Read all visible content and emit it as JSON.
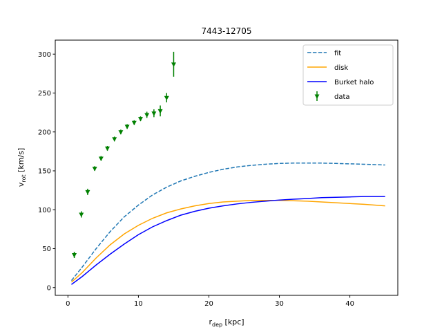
{
  "chart_data": {
    "type": "line",
    "title": "7443-12705",
    "xlabel_main": "r",
    "xlabel_sub": "dep",
    "xlabel_unit": " [kpc]",
    "ylabel_main": "v",
    "ylabel_sub": "rot",
    "ylabel_unit": " [km/s]",
    "xlim": [
      -1.8,
      46.8
    ],
    "ylim": [
      -10,
      318
    ],
    "xticks": [
      0,
      10,
      20,
      30,
      40
    ],
    "yticks": [
      0,
      50,
      100,
      150,
      200,
      250,
      300
    ],
    "grid": false,
    "legend_position": "top-right",
    "series": [
      {
        "name": "fit",
        "style": "dashed",
        "color": "#1f77b4",
        "x": [
          0.5,
          2,
          4,
          6,
          8,
          10,
          12,
          14,
          16,
          18,
          20,
          22,
          24,
          26,
          28,
          30,
          32,
          34,
          36,
          38,
          40,
          42,
          45
        ],
        "y": [
          9,
          26,
          50,
          72,
          91,
          106,
          119,
          129,
          137,
          143,
          148,
          152,
          155,
          157,
          158.5,
          159.5,
          160,
          160,
          160,
          159.5,
          159,
          158.5,
          157.5
        ]
      },
      {
        "name": "disk",
        "style": "solid",
        "color": "#ffa500",
        "x": [
          0.5,
          2,
          4,
          6,
          8,
          10,
          12,
          14,
          16,
          18,
          20,
          22,
          24,
          26,
          28,
          30,
          32,
          34,
          36,
          38,
          40,
          42,
          45
        ],
        "y": [
          7,
          19,
          38,
          55,
          69,
          80,
          89,
          96,
          101,
          105,
          108,
          110,
          111,
          112,
          112,
          112,
          111.5,
          111,
          110,
          109,
          108,
          107,
          105
        ]
      },
      {
        "name": "Burket halo",
        "style": "solid",
        "color": "#0000ff",
        "x": [
          0.5,
          2,
          4,
          6,
          8,
          10,
          12,
          14,
          16,
          18,
          20,
          22,
          24,
          26,
          28,
          30,
          32,
          34,
          36,
          38,
          40,
          42,
          45
        ],
        "y": [
          4,
          14,
          29,
          43,
          56,
          68,
          78,
          86,
          93,
          98,
          102,
          105,
          107.5,
          109.5,
          111,
          112.5,
          113.5,
          114.5,
          115.5,
          116,
          116.5,
          117,
          117
        ]
      },
      {
        "name": "data",
        "style": "errorbar",
        "color": "#008000",
        "x": [
          0.9,
          1.9,
          2.8,
          3.8,
          4.7,
          5.6,
          6.6,
          7.5,
          8.4,
          9.4,
          10.3,
          11.2,
          12.2,
          13.1,
          14.0,
          15.0
        ],
        "y": [
          42,
          94,
          123,
          153,
          166,
          179,
          191,
          200,
          207,
          212,
          217,
          222,
          224,
          227,
          244,
          287
        ],
        "err": [
          4,
          4,
          4,
          3,
          3,
          3,
          3,
          3,
          3,
          3,
          3,
          4,
          5,
          7,
          6,
          16
        ]
      }
    ]
  }
}
